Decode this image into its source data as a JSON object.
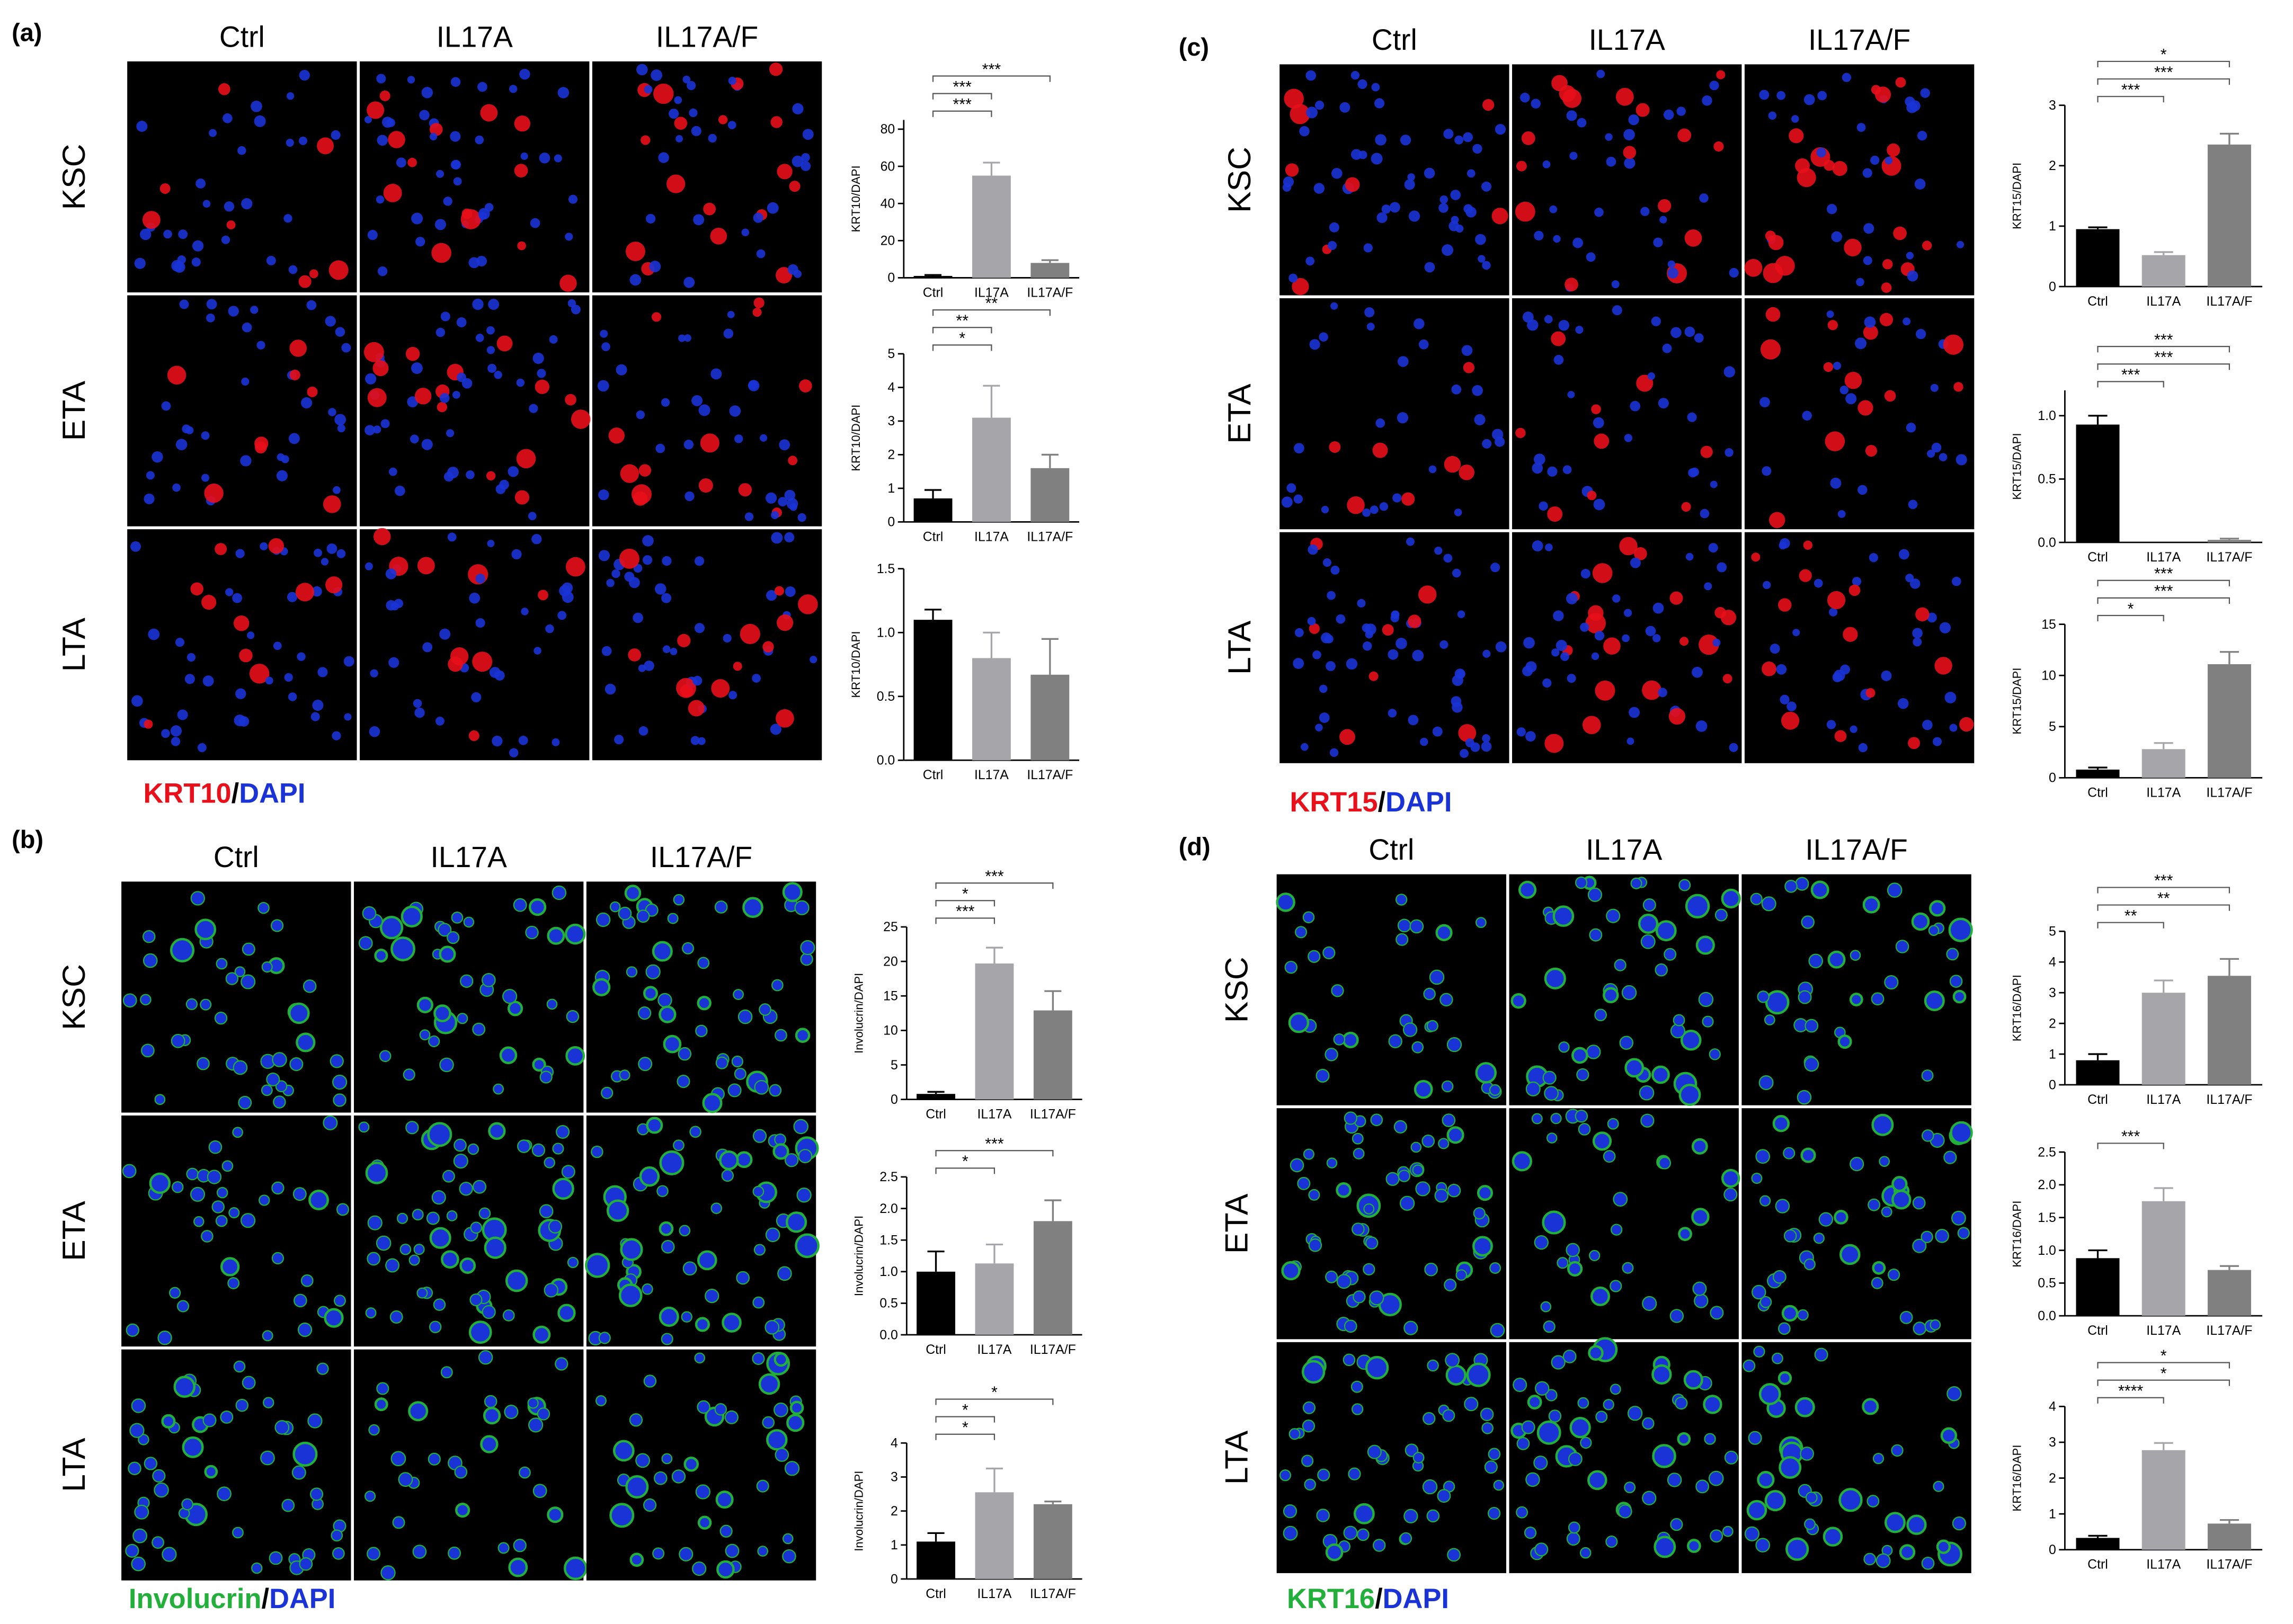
{
  "panels": [
    {
      "label": "(a)",
      "columns": [
        "Ctrl",
        "IL17A",
        "IL17A/F"
      ],
      "rows": [
        "KSC",
        "ETA",
        "LTA"
      ],
      "stain": {
        "marker": "KRT10",
        "separator": "/",
        "counterstain": "DAPI",
        "marker_color": "#e8101a",
        "counterstain_color": "#1a33d6"
      }
    },
    {
      "label": "(b)",
      "columns": [
        "Ctrl",
        "IL17A",
        "IL17A/F"
      ],
      "rows": [
        "KSC",
        "ETA",
        "LTA"
      ],
      "stain": {
        "marker": "Involucrin",
        "separator": "/",
        "counterstain": "DAPI",
        "marker_color": "#22b03a",
        "counterstain_color": "#1a33d6"
      }
    },
    {
      "label": "(c)",
      "columns": [
        "Ctrl",
        "IL17A",
        "IL17A/F"
      ],
      "rows": [
        "KSC",
        "ETA",
        "LTA"
      ],
      "stain": {
        "marker": "KRT15",
        "separator": "/",
        "counterstain": "DAPI",
        "marker_color": "#e8101a",
        "counterstain_color": "#1a33d6"
      }
    },
    {
      "label": "(d)",
      "columns": [
        "Ctrl",
        "IL17A",
        "IL17A/F"
      ],
      "rows": [
        "KSC",
        "ETA",
        "LTA"
      ],
      "stain": {
        "marker": "KRT16",
        "separator": "/",
        "counterstain": "DAPI",
        "marker_color": "#22b03a",
        "counterstain_color": "#1a33d6"
      }
    }
  ],
  "chart_data": [
    {
      "type": "bar",
      "ylabel": "KRT10/DAPI",
      "categories": [
        "Ctrl",
        "IL17A",
        "IL17A/F"
      ],
      "values": [
        1,
        55,
        8
      ],
      "errors": [
        0.5,
        7,
        1.5
      ],
      "colors": [
        "#000000",
        "#a6a6aa",
        "#808080"
      ],
      "ylim": [
        0,
        85
      ],
      "yticks": [
        0,
        20,
        40,
        60,
        80
      ],
      "significance": [
        {
          "from": 0,
          "to": 1,
          "label": "***"
        },
        {
          "from": 0,
          "to": 1,
          "label": "***"
        },
        {
          "from": 0,
          "to": 2,
          "label": "***"
        }
      ]
    },
    {
      "type": "bar",
      "ylabel": "KRT10/DAPI",
      "categories": [
        "Ctrl",
        "IL17A",
        "IL17A/F"
      ],
      "values": [
        0.7,
        3.1,
        1.6
      ],
      "errors": [
        0.25,
        0.95,
        0.4
      ],
      "colors": [
        "#000000",
        "#a6a6aa",
        "#808080"
      ],
      "ylim": [
        0,
        5
      ],
      "yticks": [
        0,
        1,
        2,
        3,
        4,
        5
      ],
      "significance": [
        {
          "from": 0,
          "to": 1,
          "label": "*"
        },
        {
          "from": 0,
          "to": 1,
          "label": "**"
        },
        {
          "from": 0,
          "to": 2,
          "label": "**"
        }
      ]
    },
    {
      "type": "bar",
      "ylabel": "KRT10/DAPI",
      "categories": [
        "Ctrl",
        "IL17A",
        "IL17A/F"
      ],
      "values": [
        1.1,
        0.8,
        0.67
      ],
      "errors": [
        0.08,
        0.2,
        0.28
      ],
      "colors": [
        "#000000",
        "#a6a6aa",
        "#808080"
      ],
      "ylim": [
        0,
        1.5
      ],
      "yticks": [
        {
          "value": 0,
          "label": "0.0"
        },
        {
          "value": 0.5,
          "label": "0.5"
        },
        {
          "value": 1,
          "label": "1.0"
        },
        {
          "value": 1.5,
          "label": "1.5"
        }
      ],
      "significance": []
    },
    {
      "type": "bar",
      "ylabel": "Involucrin/DAPI",
      "categories": [
        "Ctrl",
        "IL17A",
        "IL17A/F"
      ],
      "values": [
        0.8,
        19.7,
        12.9
      ],
      "errors": [
        0.3,
        2.3,
        2.8
      ],
      "colors": [
        "#000000",
        "#a6a6aa",
        "#808080"
      ],
      "ylim": [
        0,
        25
      ],
      "yticks": [
        0,
        5,
        10,
        15,
        20,
        25
      ],
      "significance": [
        {
          "from": 0,
          "to": 1,
          "label": "***"
        },
        {
          "from": 0,
          "to": 1,
          "label": "*"
        },
        {
          "from": 0,
          "to": 2,
          "label": "***"
        }
      ]
    },
    {
      "type": "bar",
      "ylabel": "Involucrin/DAPI",
      "categories": [
        "Ctrl",
        "IL17A",
        "IL17A/F"
      ],
      "values": [
        1.0,
        1.13,
        1.8
      ],
      "errors": [
        0.32,
        0.3,
        0.33
      ],
      "colors": [
        "#000000",
        "#a6a6aa",
        "#808080"
      ],
      "ylim": [
        0,
        2.5
      ],
      "yticks": [
        {
          "value": 0,
          "label": "0.0"
        },
        {
          "value": 0.5,
          "label": "0.5"
        },
        {
          "value": 1,
          "label": "1.0"
        },
        {
          "value": 1.5,
          "label": "1.5"
        },
        {
          "value": 2,
          "label": "2.0"
        },
        {
          "value": 2.5,
          "label": "2.5"
        }
      ],
      "significance": [
        {
          "from": 0,
          "to": 1,
          "label": "*"
        },
        {
          "from": 0,
          "to": 2,
          "label": "***"
        }
      ]
    },
    {
      "type": "bar",
      "ylabel": "Involucrin/DAPI",
      "categories": [
        "Ctrl",
        "IL17A",
        "IL17A/F"
      ],
      "values": [
        1.1,
        2.55,
        2.2
      ],
      "errors": [
        0.25,
        0.7,
        0.08
      ],
      "colors": [
        "#000000",
        "#a6a6aa",
        "#808080"
      ],
      "ylim": [
        0,
        4
      ],
      "yticks": [
        0,
        1,
        2,
        3,
        4
      ],
      "significance": [
        {
          "from": 0,
          "to": 1,
          "label": "*"
        },
        {
          "from": 0,
          "to": 1,
          "label": "*"
        },
        {
          "from": 0,
          "to": 2,
          "label": "*"
        }
      ]
    },
    {
      "type": "bar",
      "ylabel": "KRT15/DAPI",
      "categories": [
        "Ctrl",
        "IL17A",
        "IL17A/F"
      ],
      "values": [
        0.95,
        0.52,
        2.35
      ],
      "errors": [
        0.03,
        0.05,
        0.18
      ],
      "colors": [
        "#000000",
        "#a6a6aa",
        "#808080"
      ],
      "ylim": [
        0,
        3
      ],
      "yticks": [
        0,
        1,
        2,
        3
      ],
      "significance": [
        {
          "from": 0,
          "to": 1,
          "label": "***"
        },
        {
          "from": 0,
          "to": 2,
          "label": "***"
        },
        {
          "from": 0,
          "to": 2,
          "label": "*"
        }
      ]
    },
    {
      "type": "bar",
      "ylabel": "KRT15/DAPI",
      "categories": [
        "Ctrl",
        "IL17A",
        "IL17A/F"
      ],
      "values": [
        0.93,
        0,
        0.02
      ],
      "errors": [
        0.07,
        0,
        0.01
      ],
      "colors": [
        "#000000",
        "#a6a6aa",
        "#808080"
      ],
      "ylim": [
        0,
        1.2
      ],
      "yticks": [
        {
          "value": 0,
          "label": "0.0"
        },
        {
          "value": 0.5,
          "label": "0.5"
        },
        {
          "value": 1,
          "label": "1.0"
        }
      ],
      "significance": [
        {
          "from": 0,
          "to": 1,
          "label": "***"
        },
        {
          "from": 0,
          "to": 2,
          "label": "***"
        },
        {
          "from": 0,
          "to": 2,
          "label": "***"
        }
      ]
    },
    {
      "type": "bar",
      "ylabel": "KRT15/DAPI",
      "categories": [
        "Ctrl",
        "IL17A",
        "IL17A/F"
      ],
      "values": [
        0.8,
        2.8,
        11.1
      ],
      "errors": [
        0.2,
        0.6,
        1.2
      ],
      "colors": [
        "#000000",
        "#a6a6aa",
        "#808080"
      ],
      "ylim": [
        0,
        15
      ],
      "yticks": [
        0,
        5,
        10,
        15
      ],
      "significance": [
        {
          "from": 0,
          "to": 1,
          "label": "*"
        },
        {
          "from": 0,
          "to": 2,
          "label": "***"
        },
        {
          "from": 0,
          "to": 2,
          "label": "***"
        }
      ]
    },
    {
      "type": "bar",
      "ylabel": "KRT16/DAPI",
      "categories": [
        "Ctrl",
        "IL17A",
        "IL17A/F"
      ],
      "values": [
        0.8,
        3.0,
        3.55
      ],
      "errors": [
        0.2,
        0.4,
        0.55
      ],
      "colors": [
        "#000000",
        "#a6a6aa",
        "#808080"
      ],
      "ylim": [
        0,
        5
      ],
      "yticks": [
        0,
        1,
        2,
        3,
        4,
        5
      ],
      "significance": [
        {
          "from": 0,
          "to": 1,
          "label": "**"
        },
        {
          "from": 0,
          "to": 2,
          "label": "**"
        },
        {
          "from": 0,
          "to": 2,
          "label": "***"
        }
      ]
    },
    {
      "type": "bar",
      "ylabel": "KRT16/DAPI",
      "categories": [
        "Ctrl",
        "IL17A",
        "IL17A/F"
      ],
      "values": [
        0.88,
        1.75,
        0.7
      ],
      "errors": [
        0.12,
        0.2,
        0.06
      ],
      "colors": [
        "#000000",
        "#a6a6aa",
        "#808080"
      ],
      "ylim": [
        0,
        2.5
      ],
      "yticks": [
        {
          "value": 0,
          "label": "0.0"
        },
        {
          "value": 0.5,
          "label": "0.5"
        },
        {
          "value": 1,
          "label": "1.0"
        },
        {
          "value": 1.5,
          "label": "1.5"
        },
        {
          "value": 2,
          "label": "2.0"
        },
        {
          "value": 2.5,
          "label": "2.5"
        }
      ],
      "significance": [
        {
          "from": 0,
          "to": 1,
          "label": "***"
        }
      ]
    },
    {
      "type": "bar",
      "ylabel": "KRT16/DAPI",
      "categories": [
        "Ctrl",
        "IL17A",
        "IL17A/F"
      ],
      "values": [
        0.33,
        2.78,
        0.73
      ],
      "errors": [
        0.06,
        0.2,
        0.1
      ],
      "colors": [
        "#000000",
        "#a6a6aa",
        "#808080"
      ],
      "ylim": [
        0,
        4
      ],
      "yticks": [
        0,
        1,
        2,
        3,
        4
      ],
      "significance": [
        {
          "from": 0,
          "to": 1,
          "label": "****"
        },
        {
          "from": 0,
          "to": 2,
          "label": "*"
        },
        {
          "from": 0,
          "to": 2,
          "label": "*"
        }
      ]
    }
  ]
}
